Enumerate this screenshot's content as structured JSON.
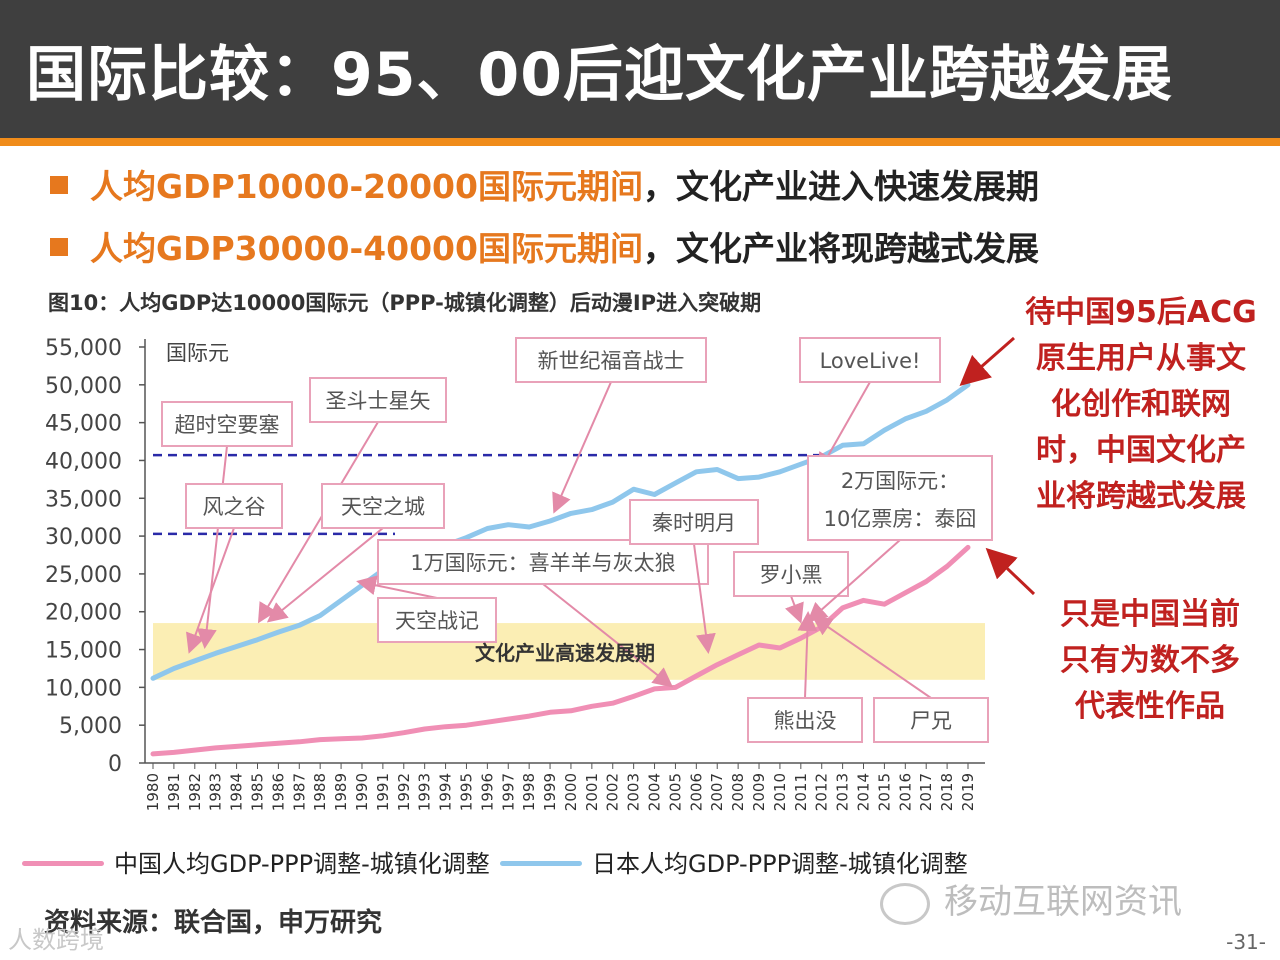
{
  "title": "国际比较：95、00后迎文化产业跨越发展",
  "bullets": [
    {
      "highlight": "人均GDP10000-20000国际元期间",
      "rest": "，文化产业进入快速发展期"
    },
    {
      "highlight": "人均GDP30000-40000国际元期间",
      "rest": "，文化产业将现跨越式发展"
    }
  ],
  "chart_title": "图10：人均GDP达10000国际元（PPP-城镇化调整）后动漫IP进入突破期",
  "side_notes": [
    [
      "待中国95后ACG",
      "原生用户从事文",
      "化创作和联网",
      "时，中国文化产",
      "业将跨越式发展"
    ],
    [
      "只是中国当前",
      "只有为数不多",
      "代表性作品"
    ]
  ],
  "source": "资料来源：联合国，申万研究",
  "watermark_left": "人数跨境",
  "watermark_right": "移动互联网资讯",
  "page_number": "-31-",
  "colors": {
    "china": "#f08fb5",
    "japan": "#8fc7ec",
    "accent": "#e6781e",
    "band": "#fbeeb4",
    "callout": "#c0211f",
    "dashed": "#2a2aa8"
  },
  "chart_data": {
    "type": "line",
    "title": "图10：人均GDP达10000国际元（PPP-城镇化调整）后动漫IP进入突破期",
    "ylabel": "国际元",
    "xlabel": "",
    "ylim": [
      0,
      55000
    ],
    "yticks": [
      0,
      5000,
      10000,
      15000,
      20000,
      25000,
      30000,
      35000,
      40000,
      45000,
      50000,
      55000
    ],
    "ytick_labels": [
      "0",
      "5,000",
      "10,000",
      "15,000",
      "20,000",
      "25,000",
      "30,000",
      "35,000",
      "40,000",
      "45,000",
      "50,000",
      "55,000"
    ],
    "x": [
      "1980",
      "1981",
      "1982",
      "1983",
      "1984",
      "1985",
      "1986",
      "1987",
      "1988",
      "1989",
      "1990",
      "1991",
      "1992",
      "1993",
      "1994",
      "1995",
      "1996",
      "1997",
      "1998",
      "1999",
      "2000",
      "2001",
      "2002",
      "2003",
      "2004",
      "2005",
      "2006",
      "2007",
      "2008",
      "2009",
      "2010",
      "2011",
      "2012",
      "2013",
      "2014",
      "2015",
      "2016",
      "2017",
      "2018",
      "2019"
    ],
    "series": [
      {
        "name": "中国人均GDP-PPP调整-城镇化调整",
        "color": "#f08fb5",
        "values": [
          1200,
          1400,
          1700,
          2000,
          2200,
          2400,
          2600,
          2800,
          3100,
          3200,
          3300,
          3600,
          4000,
          4500,
          4800,
          5000,
          5400,
          5800,
          6200,
          6700,
          6900,
          7500,
          7900,
          8800,
          9800,
          10000,
          11500,
          13000,
          14300,
          15600,
          15200,
          16500,
          18000,
          20500,
          21500,
          21000,
          22500,
          24000,
          26000,
          28500
        ]
      },
      {
        "name": "日本人均GDP-PPP调整-城镇化调整",
        "color": "#8fc7ec",
        "values": [
          11200,
          12500,
          13500,
          14500,
          15400,
          16300,
          17300,
          18200,
          19500,
          21500,
          23500,
          25500,
          26500,
          28000,
          28800,
          29800,
          31000,
          31500,
          31200,
          32000,
          33000,
          33500,
          34500,
          36200,
          35500,
          37000,
          38500,
          38800,
          37600,
          37800,
          38500,
          39500,
          40500,
          42000,
          42200,
          44000,
          45500,
          46500,
          48000,
          50000
        ]
      }
    ],
    "reference_lines": [
      40700,
      30300
    ],
    "band": {
      "from": 11000,
      "to": 18500,
      "label": "文化产业高速发展期"
    },
    "annotations": [
      {
        "label": "超时空要塞",
        "year": "1982"
      },
      {
        "label": "圣斗士星矢",
        "year": "1986"
      },
      {
        "label": "风之谷",
        "year": "1984"
      },
      {
        "label": "天空之城",
        "year": "1986"
      },
      {
        "label": "新世纪福音战士",
        "year": "1997"
      },
      {
        "label": "LoveLive!",
        "year": "2012"
      },
      {
        "label": "1万国际元：喜羊羊与灰太狼",
        "year": "2005"
      },
      {
        "label": "天空战记",
        "year": "1989"
      },
      {
        "label": "秦时明月",
        "year": "2006"
      },
      {
        "label": "罗小黑",
        "year": "2011"
      },
      {
        "label": "2万国际元：10亿票房：泰囧",
        "year": "2013"
      },
      {
        "label": "熊出没",
        "year": "2012"
      },
      {
        "label": "尸兄",
        "year": "2013"
      }
    ],
    "legend": [
      "中国人均GDP-PPP调整-城镇化调整",
      "日本人均GDP-PPP调整-城镇化调整"
    ],
    "legend_position": "bottom",
    "grid": false
  }
}
